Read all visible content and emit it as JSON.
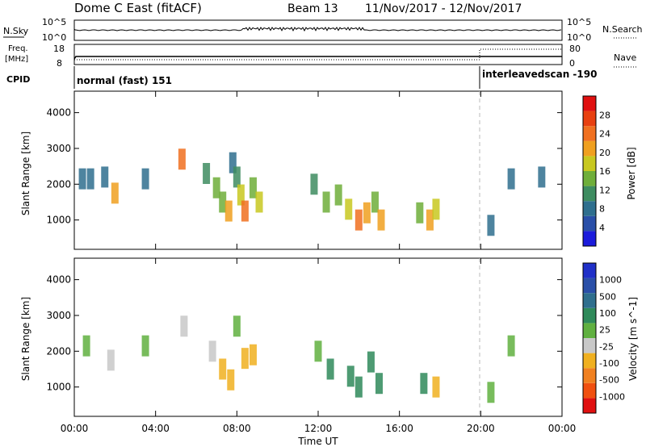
{
  "header": {
    "station": "Dome C East (fitACF)",
    "beam": "Beam 13",
    "dates": "11/Nov/2017 - 12/Nov/2017"
  },
  "strips": {
    "nsky_label": "N.Sky",
    "nsky_ticks": [
      "10^5",
      "10^0"
    ],
    "nsearch_label": "N.Search",
    "nsearch_ticks": [
      "10^5",
      "10^0"
    ],
    "freq_label": "Freq.",
    "freq_unit": "[MHz]",
    "freq_ticks": [
      "18",
      "8"
    ],
    "nave_label": "Nave",
    "nave_ticks": [
      "80",
      "0"
    ],
    "cpid_label": "CPID",
    "cpid_mode1": "normal (fast) 151",
    "cpid_mode2": "interleavedscan -190"
  },
  "colors": {
    "power_scale": [
      "#1c1cdc",
      "#2a4fa8",
      "#2f6f8e",
      "#3e8c60",
      "#6fae3a",
      "#c8c820",
      "#f0a020",
      "#f07020",
      "#e84010",
      "#e01010"
    ],
    "velocity_scale": [
      "#e01010",
      "#f05010",
      "#f08020",
      "#f0b020",
      "#c8c8c8",
      "#60b040",
      "#2f8a5a",
      "#2f6f8e",
      "#2a4fa8",
      "#2030c8"
    ]
  },
  "chart_data": [
    {
      "type": "heatmap",
      "name": "power",
      "ylabel": "Slant Range [km]",
      "yticks": [
        "4000",
        "3000",
        "2000",
        "1000"
      ],
      "ylim": [
        180,
        4600
      ],
      "xlim": [
        0,
        24
      ],
      "colorbar_label": "Power [dB]",
      "colorbar_ticks": [
        "28",
        "24",
        "20",
        "16",
        "12",
        "8",
        "4"
      ],
      "colorbar_range": [
        0,
        30
      ],
      "cells": [
        {
          "t": 0.4,
          "r": 2150,
          "v": 6
        },
        {
          "t": 0.8,
          "r": 2150,
          "v": 7
        },
        {
          "t": 1.5,
          "r": 2200,
          "v": 8
        },
        {
          "t": 2.0,
          "r": 1750,
          "v": 18
        },
        {
          "t": 3.5,
          "r": 2150,
          "v": 7
        },
        {
          "t": 5.3,
          "r": 2700,
          "v": 22
        },
        {
          "t": 6.5,
          "r": 2300,
          "v": 9
        },
        {
          "t": 7.0,
          "r": 1900,
          "v": 12
        },
        {
          "t": 7.3,
          "r": 1500,
          "v": 14
        },
        {
          "t": 7.6,
          "r": 1250,
          "v": 18
        },
        {
          "t": 7.8,
          "r": 2600,
          "v": 8
        },
        {
          "t": 8.0,
          "r": 2200,
          "v": 11
        },
        {
          "t": 8.2,
          "r": 1700,
          "v": 16
        },
        {
          "t": 8.4,
          "r": 1250,
          "v": 22
        },
        {
          "t": 8.8,
          "r": 1900,
          "v": 13
        },
        {
          "t": 9.1,
          "r": 1500,
          "v": 15
        },
        {
          "t": 11.8,
          "r": 2000,
          "v": 9
        },
        {
          "t": 12.4,
          "r": 1500,
          "v": 12
        },
        {
          "t": 13.0,
          "r": 1700,
          "v": 14
        },
        {
          "t": 13.5,
          "r": 1300,
          "v": 16
        },
        {
          "t": 14.0,
          "r": 1000,
          "v": 22
        },
        {
          "t": 14.4,
          "r": 1200,
          "v": 18
        },
        {
          "t": 14.8,
          "r": 1500,
          "v": 13
        },
        {
          "t": 15.1,
          "r": 1000,
          "v": 20
        },
        {
          "t": 17.0,
          "r": 1200,
          "v": 12
        },
        {
          "t": 17.5,
          "r": 1000,
          "v": 18
        },
        {
          "t": 17.8,
          "r": 1300,
          "v": 15
        },
        {
          "t": 20.5,
          "r": 850,
          "v": 8
        },
        {
          "t": 21.5,
          "r": 2150,
          "v": 7
        },
        {
          "t": 23.0,
          "r": 2200,
          "v": 6
        }
      ]
    },
    {
      "type": "heatmap",
      "name": "velocity",
      "ylabel": "Slant Range [km]",
      "yticks": [
        "4000",
        "3000",
        "2000",
        "1000"
      ],
      "ylim": [
        180,
        4600
      ],
      "xlim": [
        0,
        24
      ],
      "xticks": [
        "00:00",
        "04:00",
        "08:00",
        "12:00",
        "16:00",
        "20:00",
        "00:00"
      ],
      "xlabel": "Time UT",
      "colorbar_label": "Velocity [m s^-1]",
      "colorbar_ticks": [
        "1000",
        "500",
        "100",
        "25",
        "-25",
        "-100",
        "-500",
        "-1000"
      ],
      "colorbar_range": [
        -1200,
        1200
      ],
      "cells": [
        {
          "t": 0.6,
          "r": 2150,
          "v": 0
        },
        {
          "t": 1.8,
          "r": 1750,
          "v": -150
        },
        {
          "t": 3.5,
          "r": 2150,
          "v": 0
        },
        {
          "t": 5.4,
          "r": 2700,
          "v": -120
        },
        {
          "t": 6.8,
          "r": 2000,
          "v": -200
        },
        {
          "t": 7.3,
          "r": 1500,
          "v": -300
        },
        {
          "t": 7.7,
          "r": 1200,
          "v": -400
        },
        {
          "t": 8.0,
          "r": 2700,
          "v": 0
        },
        {
          "t": 8.4,
          "r": 1800,
          "v": -300
        },
        {
          "t": 8.8,
          "r": 1900,
          "v": -250
        },
        {
          "t": 12.0,
          "r": 2000,
          "v": 200
        },
        {
          "t": 12.6,
          "r": 1500,
          "v": 300
        },
        {
          "t": 13.6,
          "r": 1300,
          "v": 400
        },
        {
          "t": 14.0,
          "r": 1000,
          "v": 350
        },
        {
          "t": 14.6,
          "r": 1700,
          "v": 300
        },
        {
          "t": 15.0,
          "r": 1100,
          "v": 250
        },
        {
          "t": 17.2,
          "r": 1100,
          "v": 300
        },
        {
          "t": 17.8,
          "r": 1000,
          "v": -350
        },
        {
          "t": 20.5,
          "r": 850,
          "v": 100
        },
        {
          "t": 21.5,
          "r": 2150,
          "v": 0
        }
      ]
    }
  ]
}
